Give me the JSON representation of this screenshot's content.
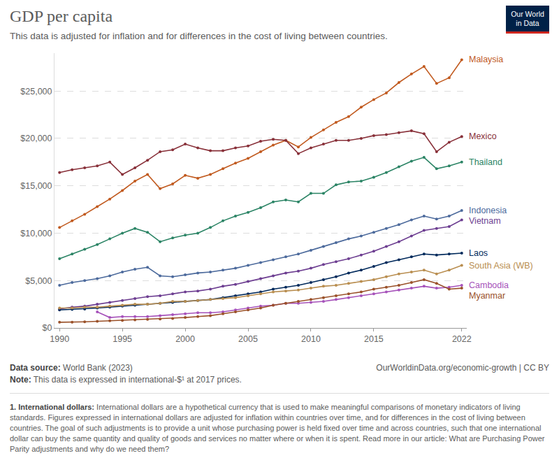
{
  "chart_data": {
    "type": "line",
    "title": "GDP per capita",
    "subtitle": "This data is adjusted for inflation and for differences in the cost of living between countries.",
    "logo": "Our World in Data",
    "data_source": {
      "label": "Data source:",
      "text": "World Bank (2023)"
    },
    "url_license": "OurWorldinData.org/economic-growth | CC BY",
    "note": {
      "label": "Note:",
      "text": "This data is expressed in international-$¹ at 2017 prices."
    },
    "footnote": {
      "label": "1. International dollars:",
      "text": "International dollars are a hypothetical currency that is used to make meaningful comparisons of monetary indicators of living standards. Figures expressed in international dollars are adjusted for inflation within countries over time, and for differences in the cost of living between countries. The goal of such adjustments is to provide a unit whose purchasing power is held fixed over time and across countries, such that one international dollar can buy the same quantity and quality of goods and services no matter where or when it is spent. Read more in our article: What are Purchasing Power Parity adjustments and why do we need them?"
    },
    "x": [
      1990,
      1991,
      1992,
      1993,
      1994,
      1995,
      1996,
      1997,
      1998,
      1999,
      2000,
      2001,
      2002,
      2003,
      2004,
      2005,
      2006,
      2007,
      2008,
      2009,
      2010,
      2011,
      2012,
      2013,
      2014,
      2015,
      2016,
      2017,
      2018,
      2019,
      2020,
      2021,
      2022
    ],
    "xlim": [
      1989.6,
      2022.4
    ],
    "xticks": [
      1990,
      1995,
      2000,
      2005,
      2010,
      2015,
      2022
    ],
    "ylim": [
      0,
      29000
    ],
    "yticks": [
      {
        "value": 0,
        "label": "$0"
      },
      {
        "value": 5000,
        "label": "$5,000"
      },
      {
        "value": 10000,
        "label": "$10,000"
      },
      {
        "value": 15000,
        "label": "$15,000"
      },
      {
        "value": 20000,
        "label": "$20,000"
      },
      {
        "value": 25000,
        "label": "$25,000"
      }
    ],
    "grid": true,
    "marker": "circle",
    "line_style": "solid",
    "series": [
      {
        "name": "Malaysia",
        "color": "#c15a1f",
        "values": [
          10600,
          11300,
          12000,
          12800,
          13600,
          14500,
          15500,
          16200,
          14700,
          15200,
          16100,
          15800,
          16200,
          16800,
          17400,
          17900,
          18600,
          19300,
          19800,
          19100,
          20100,
          20900,
          21700,
          22300,
          23300,
          24100,
          24800,
          25900,
          26800,
          27600,
          25800,
          26400,
          28300
        ]
      },
      {
        "name": "Mexico",
        "color": "#883039",
        "values": [
          16400,
          16700,
          16900,
          17100,
          17500,
          16200,
          16900,
          17700,
          18600,
          18800,
          19400,
          19000,
          18700,
          18700,
          19000,
          19200,
          19700,
          19900,
          19800,
          18400,
          19000,
          19400,
          19800,
          19800,
          20000,
          20300,
          20400,
          20600,
          20800,
          20500,
          18600,
          19600,
          20200
        ]
      },
      {
        "name": "Thailand",
        "color": "#2b8465",
        "values": [
          7300,
          7800,
          8300,
          8800,
          9400,
          10000,
          10500,
          10100,
          9100,
          9500,
          9800,
          10000,
          10600,
          11300,
          11800,
          12200,
          12700,
          13300,
          13500,
          13300,
          14200,
          14200,
          15100,
          15400,
          15500,
          15900,
          16400,
          17000,
          17600,
          18000,
          16800,
          17100,
          17500
        ]
      },
      {
        "name": "Indonesia",
        "color": "#4c6a9c",
        "values": [
          4500,
          4800,
          5000,
          5200,
          5500,
          5900,
          6200,
          6400,
          5500,
          5400,
          5600,
          5800,
          5900,
          6100,
          6300,
          6600,
          6900,
          7200,
          7500,
          7800,
          8200,
          8600,
          9000,
          9400,
          9700,
          10100,
          10500,
          10900,
          11400,
          11800,
          11500,
          11800,
          12400
        ]
      },
      {
        "name": "Vietnam",
        "color": "#6d3e91",
        "values": [
          2000,
          2200,
          2300,
          2500,
          2700,
          2900,
          3100,
          3300,
          3400,
          3600,
          3800,
          3900,
          4100,
          4400,
          4600,
          4900,
          5200,
          5500,
          5800,
          6000,
          6300,
          6700,
          7000,
          7300,
          7700,
          8100,
          8600,
          9100,
          9700,
          10300,
          10500,
          10700,
          11400
        ]
      },
      {
        "name": "Laos",
        "color": "#00295b",
        "values": [
          1900,
          1950,
          2000,
          2100,
          2200,
          2300,
          2400,
          2500,
          2600,
          2700,
          2800,
          2900,
          3000,
          3200,
          3400,
          3600,
          3800,
          4100,
          4300,
          4500,
          4800,
          5100,
          5400,
          5800,
          6100,
          6500,
          6900,
          7200,
          7500,
          7800,
          7700,
          7800,
          7900
        ]
      },
      {
        "name": "South Asia (WB)",
        "color": "#b98e50",
        "values": [
          2100,
          2100,
          2200,
          2200,
          2300,
          2400,
          2500,
          2500,
          2600,
          2800,
          2800,
          2900,
          3000,
          3100,
          3200,
          3400,
          3600,
          3800,
          3900,
          4000,
          4200,
          4400,
          4500,
          4700,
          4900,
          5100,
          5400,
          5700,
          5900,
          6100,
          5700,
          6100,
          6600
        ]
      },
      {
        "name": "Cambodia",
        "color": "#a652ba",
        "values": [
          null,
          null,
          null,
          1700,
          1100,
          1200,
          1200,
          1200,
          1300,
          1400,
          1500,
          1600,
          1600,
          1700,
          1900,
          2100,
          2300,
          2400,
          2600,
          2600,
          2700,
          2800,
          3000,
          3200,
          3400,
          3600,
          3800,
          4000,
          4200,
          4400,
          4200,
          4300,
          4500
        ]
      },
      {
        "name": "Myanmar",
        "color": "#9a5129",
        "values": [
          600,
          600,
          650,
          700,
          750,
          800,
          850,
          900,
          950,
          1000,
          1100,
          1200,
          1300,
          1500,
          1700,
          1900,
          2100,
          2400,
          2600,
          2800,
          3000,
          3200,
          3400,
          3600,
          3800,
          4100,
          4300,
          4500,
          4800,
          5100,
          4700,
          4100,
          4200
        ]
      }
    ]
  }
}
